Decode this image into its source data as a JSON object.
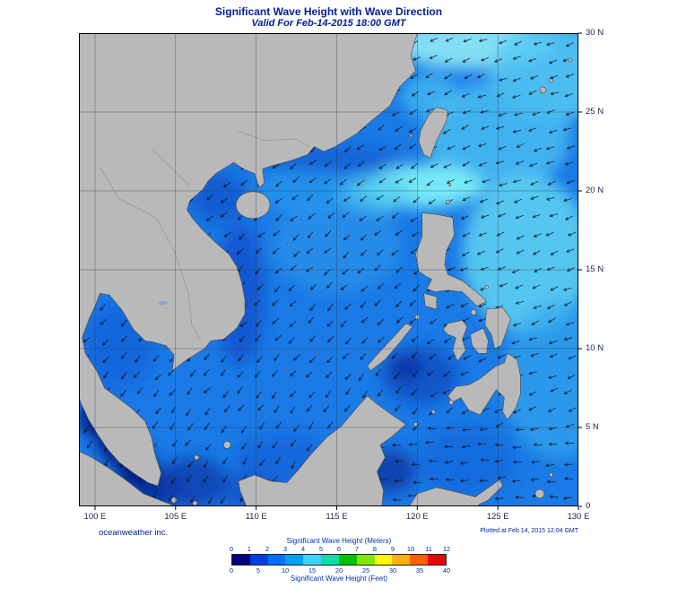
{
  "header": {
    "title": "Significant Wave Height with Wave Direction",
    "subtitle": "Valid For Feb-14-2015 18:00 GMT"
  },
  "axes": {
    "x_ticks": [
      "100 E",
      "105 E",
      "110 E",
      "115 E",
      "120 E",
      "125 E",
      "130 E"
    ],
    "y_ticks": [
      "0",
      "5 N",
      "10 N",
      "15 N",
      "20 N",
      "25 N",
      "30 N"
    ]
  },
  "footer": {
    "credit": "oceanweather inc.",
    "plotted": "Plotted at Feb 14, 2015 12:04 GMT"
  },
  "legend": {
    "title_meters": "Significant Wave Height (Meters)",
    "title_feet": "Significant Wave Height (Feet)",
    "meters_ticks": [
      "0",
      "1",
      "2",
      "3",
      "4",
      "5",
      "6",
      "7",
      "8",
      "9",
      "10",
      "11",
      "12"
    ],
    "feet_ticks": [
      "0",
      "5",
      "10",
      "15",
      "20",
      "25",
      "30",
      "35",
      "40"
    ],
    "colors": [
      "#000080",
      "#0040e0",
      "#0070ff",
      "#00a0ff",
      "#40d0ff",
      "#00e0a8",
      "#00c000",
      "#80e800",
      "#ffff00",
      "#ffb000",
      "#ff6000",
      "#f00000"
    ]
  },
  "colors": {
    "ocean_base": "#1a7ae6",
    "land": "#b9b9b9",
    "text_navy": "#002299"
  },
  "chart_data": {
    "type": "heatmap",
    "title": "Significant Wave Height with Wave Direction",
    "subtitle": "Valid For Feb-14-2015 18:00 GMT",
    "x_axis_ticks": [
      "100 E",
      "105 E",
      "110 E",
      "115 E",
      "120 E",
      "125 E",
      "130 E"
    ],
    "y_axis_ticks": [
      "0",
      "5 N",
      "10 N",
      "15 N",
      "20 N",
      "25 N",
      "30 N"
    ],
    "x_range": [
      99,
      130
    ],
    "y_range": [
      0,
      30
    ],
    "colorbar_meters": [
      0,
      1,
      2,
      3,
      4,
      5,
      6,
      7,
      8,
      9,
      10,
      11,
      12
    ],
    "colorbar_feet": [
      0,
      5,
      10,
      15,
      20,
      25,
      30,
      35,
      40
    ],
    "legend_position": "bottom"
  }
}
